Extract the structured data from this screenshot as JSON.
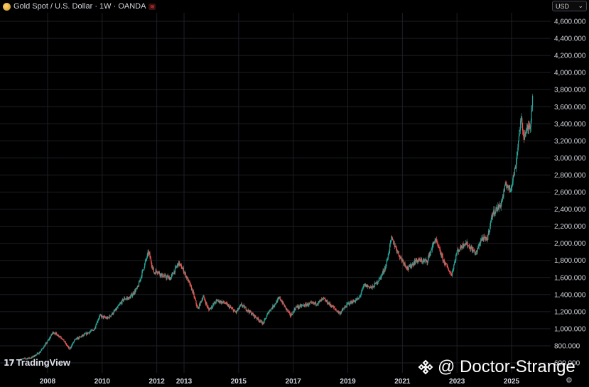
{
  "header": {
    "title": "Gold Spot / U.S. Dollar · 1W · OANDA",
    "badge": "≋"
  },
  "currency_selector": {
    "label": "USD",
    "chevron": "⌄"
  },
  "branding": {
    "logo_text": "TradingView",
    "logo_mark": "𝟭𝟳"
  },
  "watermark": {
    "text": "@ Doctor-Strange"
  },
  "icons": {
    "symbol": "gold-coin-icon",
    "settings": "gear-icon",
    "watermark": "binance-diamond-icon"
  },
  "colors": {
    "background": "#000000",
    "up": "#26a69a",
    "down": "#ef5350",
    "grid": "#1c1f26",
    "text": "#d1d4dc"
  },
  "chart_data": {
    "type": "candlestick",
    "x_start": "2007-01",
    "x_end": "2025-09",
    "x_ticks": [
      {
        "label": "2008",
        "date": 2008.0
      },
      {
        "label": "2010",
        "date": 2010.0
      },
      {
        "label": "2012",
        "date": 2012.0
      },
      {
        "label": "2013",
        "date": 2013.0
      },
      {
        "label": "2015",
        "date": 2015.0
      },
      {
        "label": "2017",
        "date": 2017.0
      },
      {
        "label": "2019",
        "date": 2019.0
      },
      {
        "label": "2021",
        "date": 2021.0
      },
      {
        "label": "2023",
        "date": 2023.0
      },
      {
        "label": "2025",
        "date": 2025.0
      }
    ],
    "y_ticks": [
      "600.000",
      "800.000",
      "1,000.000",
      "1,200.000",
      "1,400.000",
      "1,600.000",
      "1,800.000",
      "2,000.000",
      "2,200.000",
      "2,400.000",
      "2,600.000",
      "2,800.000",
      "3,000.000",
      "3,200.000",
      "3,400.000",
      "3,600.000",
      "3,800.000",
      "4,000.000",
      "4,200.000",
      "4,400.000",
      "4,600.000"
    ],
    "ylim": [
      600,
      4600
    ],
    "price_path": [
      [
        2007.0,
        640
      ],
      [
        2007.4,
        660
      ],
      [
        2007.7,
        720
      ],
      [
        2008.0,
        850
      ],
      [
        2008.2,
        960
      ],
      [
        2008.5,
        900
      ],
      [
        2008.8,
        760
      ],
      [
        2009.0,
        870
      ],
      [
        2009.3,
        920
      ],
      [
        2009.7,
        990
      ],
      [
        2009.9,
        1150
      ],
      [
        2010.2,
        1120
      ],
      [
        2010.5,
        1220
      ],
      [
        2010.8,
        1350
      ],
      [
        2011.0,
        1360
      ],
      [
        2011.3,
        1480
      ],
      [
        2011.6,
        1800
      ],
      [
        2011.7,
        1900
      ],
      [
        2011.9,
        1650
      ],
      [
        2012.0,
        1680
      ],
      [
        2012.2,
        1620
      ],
      [
        2012.5,
        1590
      ],
      [
        2012.8,
        1770
      ],
      [
        2013.0,
        1670
      ],
      [
        2013.3,
        1450
      ],
      [
        2013.5,
        1230
      ],
      [
        2013.7,
        1380
      ],
      [
        2013.9,
        1220
      ],
      [
        2014.2,
        1330
      ],
      [
        2014.5,
        1300
      ],
      [
        2014.9,
        1190
      ],
      [
        2015.1,
        1280
      ],
      [
        2015.5,
        1170
      ],
      [
        2015.9,
        1060
      ],
      [
        2016.1,
        1200
      ],
      [
        2016.5,
        1360
      ],
      [
        2016.9,
        1150
      ],
      [
        2017.1,
        1250
      ],
      [
        2017.6,
        1290
      ],
      [
        2017.9,
        1300
      ],
      [
        2018.1,
        1350
      ],
      [
        2018.5,
        1240
      ],
      [
        2018.7,
        1180
      ],
      [
        2019.0,
        1290
      ],
      [
        2019.4,
        1350
      ],
      [
        2019.6,
        1510
      ],
      [
        2019.9,
        1480
      ],
      [
        2020.2,
        1600
      ],
      [
        2020.4,
        1740
      ],
      [
        2020.6,
        2060
      ],
      [
        2020.9,
        1850
      ],
      [
        2021.2,
        1700
      ],
      [
        2021.5,
        1800
      ],
      [
        2021.9,
        1790
      ],
      [
        2022.2,
        2050
      ],
      [
        2022.5,
        1800
      ],
      [
        2022.8,
        1630
      ],
      [
        2023.0,
        1900
      ],
      [
        2023.3,
        2010
      ],
      [
        2023.7,
        1880
      ],
      [
        2023.9,
        2060
      ],
      [
        2024.1,
        2040
      ],
      [
        2024.3,
        2350
      ],
      [
        2024.6,
        2450
      ],
      [
        2024.8,
        2700
      ],
      [
        2024.95,
        2620
      ],
      [
        2025.15,
        2900
      ],
      [
        2025.3,
        3350
      ],
      [
        2025.35,
        3450
      ],
      [
        2025.45,
        3250
      ],
      [
        2025.6,
        3350
      ],
      [
        2025.7,
        3400
      ],
      [
        2025.78,
        3800
      ]
    ]
  }
}
